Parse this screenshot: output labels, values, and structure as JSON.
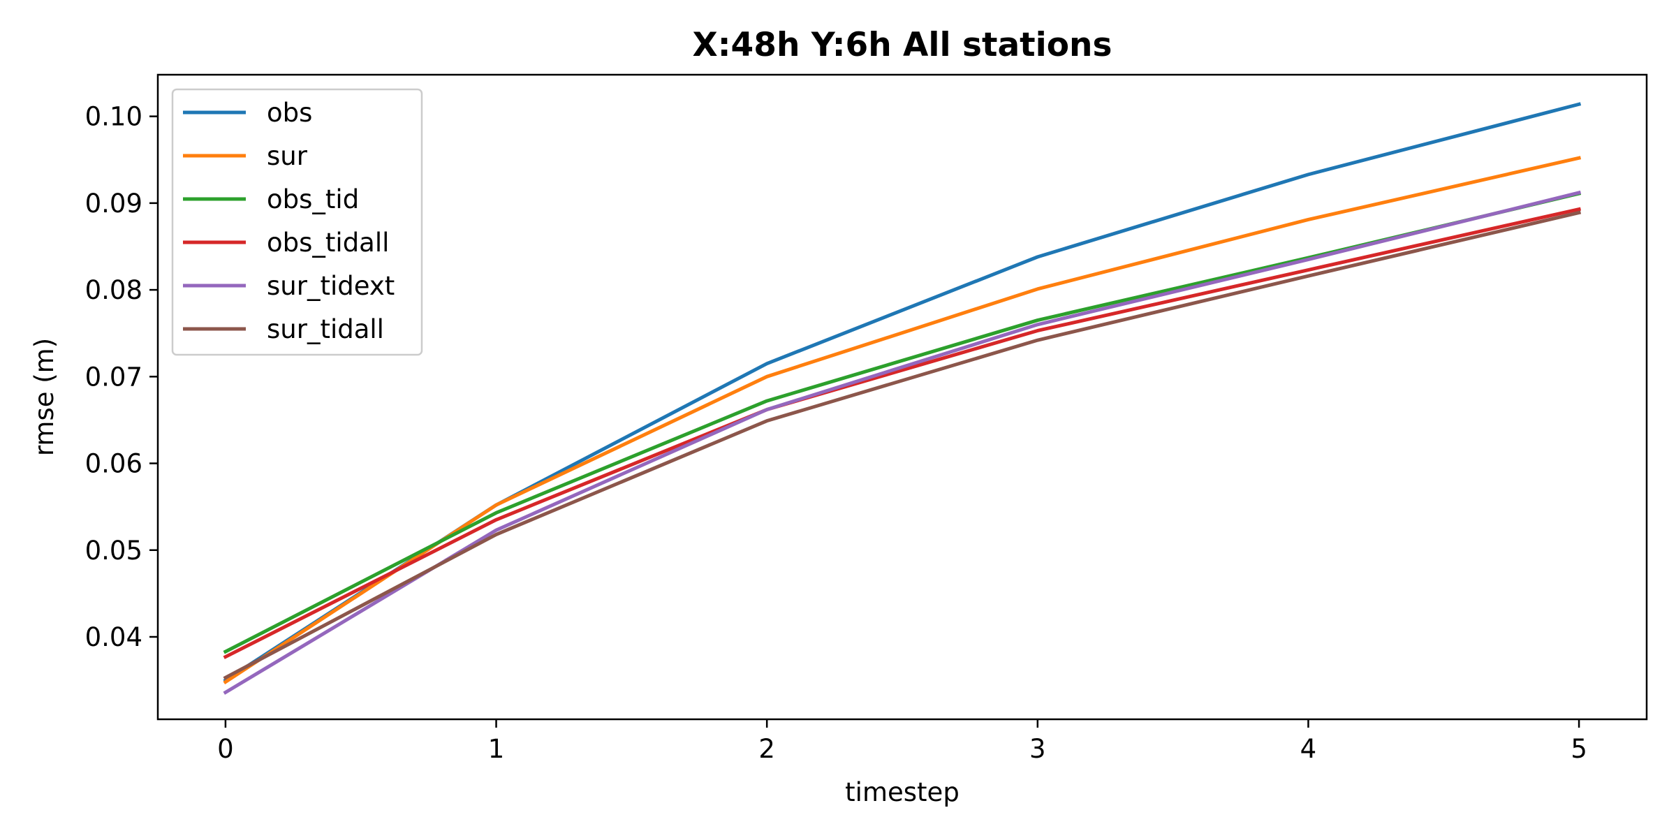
{
  "chart_data": {
    "type": "line",
    "title": "X:48h   Y:6h   All stations",
    "xlabel": "timestep",
    "ylabel": "rmse (m)",
    "x": [
      0,
      1,
      2,
      3,
      4,
      5
    ],
    "xlim": [
      -0.25,
      5.25
    ],
    "ylim": [
      0.0305,
      0.1048
    ],
    "xticks": [
      0,
      1,
      2,
      3,
      4,
      5
    ],
    "yticks": [
      0.04,
      0.05,
      0.06,
      0.07,
      0.08,
      0.09,
      0.1
    ],
    "ytick_labels": [
      "0.04",
      "0.05",
      "0.06",
      "0.07",
      "0.08",
      "0.09",
      "0.10"
    ],
    "grid": false,
    "legend_position": "upper-left",
    "series": [
      {
        "name": "obs",
        "color": "#1f77b4",
        "values": [
          0.035,
          0.0552,
          0.0715,
          0.0838,
          0.0933,
          0.1014
        ]
      },
      {
        "name": "sur",
        "color": "#ff7f0e",
        "values": [
          0.0348,
          0.0552,
          0.07,
          0.0801,
          0.0881,
          0.0952
        ]
      },
      {
        "name": "obs_tid",
        "color": "#2ca02c",
        "values": [
          0.0383,
          0.0543,
          0.0672,
          0.0765,
          0.0837,
          0.0911
        ]
      },
      {
        "name": "obs_tidall",
        "color": "#d62728",
        "values": [
          0.0377,
          0.0535,
          0.0662,
          0.0753,
          0.0823,
          0.0893
        ]
      },
      {
        "name": "sur_tidext",
        "color": "#9467bd",
        "values": [
          0.0336,
          0.0523,
          0.0662,
          0.076,
          0.0835,
          0.0912
        ]
      },
      {
        "name": "sur_tidall",
        "color": "#8c564b",
        "values": [
          0.0353,
          0.0518,
          0.0649,
          0.0742,
          0.0816,
          0.0889
        ]
      }
    ]
  }
}
